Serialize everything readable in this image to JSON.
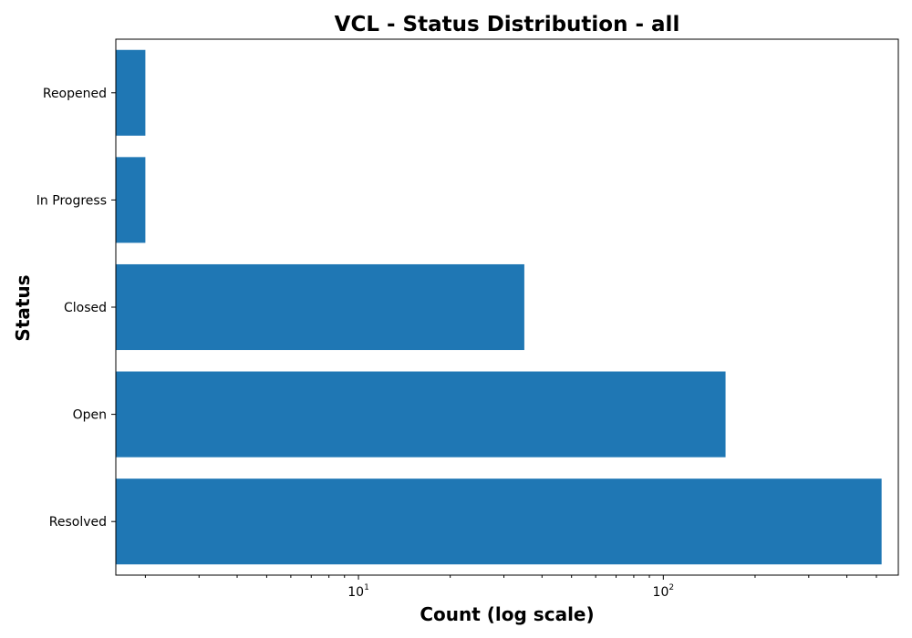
{
  "chart_data": {
    "type": "bar",
    "orientation": "horizontal",
    "title": "VCL - Status Distribution - all",
    "xlabel": "Count (log scale)",
    "ylabel": "Status",
    "x_scale": "log",
    "xlim": [
      1.6,
      590
    ],
    "categories": [
      "Resolved",
      "Open",
      "Closed",
      "In Progress",
      "Reopened"
    ],
    "values": [
      520,
      160,
      35,
      2,
      2
    ],
    "x_ticks": [
      {
        "base": "10",
        "exp": "1",
        "value": 10
      },
      {
        "base": "10",
        "exp": "2",
        "value": 100
      }
    ],
    "bar_color": "#1f77b4",
    "grid": false,
    "legend": "none"
  }
}
